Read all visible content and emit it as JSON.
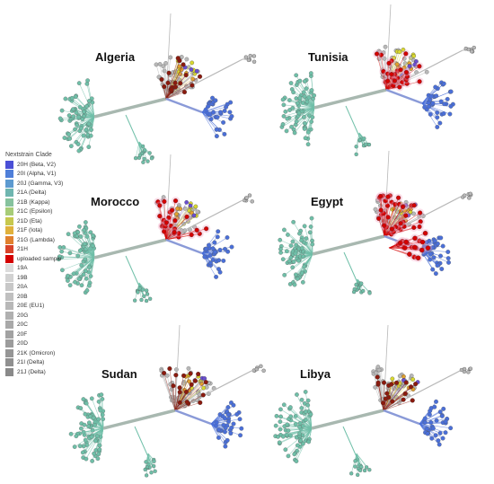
{
  "legend": {
    "title": "Nextstrain Clade",
    "items": [
      {
        "label": "20H (Beta, V2)",
        "color": "#4a4fd6"
      },
      {
        "label": "20I (Alpha, V1)",
        "color": "#4f7fd9"
      },
      {
        "label": "20J (Gamma, V3)",
        "color": "#5d9ad0"
      },
      {
        "label": "21A (Delta)",
        "color": "#6fb6b0"
      },
      {
        "label": "21B (Kappa)",
        "color": "#86c29e"
      },
      {
        "label": "21C (Epsilon)",
        "color": "#a7cc78"
      },
      {
        "label": "21D (Eta)",
        "color": "#c7c84e"
      },
      {
        "label": "21F (Iota)",
        "color": "#e0b13c"
      },
      {
        "label": "21G (Lambda)",
        "color": "#e0802e"
      },
      {
        "label": "21H",
        "color": "#d8432a"
      },
      {
        "label": "uploaded sample",
        "color": "#d40000"
      },
      {
        "label": "19A",
        "color": "#dcdcdc"
      },
      {
        "label": "19B",
        "color": "#d2d2d2"
      },
      {
        "label": "20A",
        "color": "#c8c8c8"
      },
      {
        "label": "20B",
        "color": "#c0c0c0"
      },
      {
        "label": "20E (EU1)",
        "color": "#b8b8b8"
      },
      {
        "label": "20G",
        "color": "#b0b0b0"
      },
      {
        "label": "20C",
        "color": "#a9a9a9"
      },
      {
        "label": "20F",
        "color": "#a2a2a2"
      },
      {
        "label": "20D",
        "color": "#9c9c9c"
      },
      {
        "label": "21K (Omicron)",
        "color": "#969696"
      },
      {
        "label": "21I (Delta)",
        "color": "#909090"
      },
      {
        "label": "21J (Delta)",
        "color": "#8a8a8a"
      }
    ]
  },
  "panels": [
    {
      "title": "Algeria",
      "red_level": 1
    },
    {
      "title": "Tunisia",
      "red_level": 2
    },
    {
      "title": "Morocco",
      "red_level": 2
    },
    {
      "title": "Egypt",
      "red_level": 3
    },
    {
      "title": "Sudan",
      "red_level": 1
    },
    {
      "title": "Libya",
      "red_level": 1
    }
  ],
  "colors": {
    "teal": "#6fbfa8",
    "blue": "#4a6fd8",
    "gray": "#b8b8b8",
    "trunk": "#a8b8b0",
    "red": "#d40000",
    "darkred": "#8b1a0e",
    "yellow": "#d8d830",
    "orange": "#e0a030",
    "purple": "#6a4fd0",
    "pinkhalo": "#f4a0c0"
  }
}
